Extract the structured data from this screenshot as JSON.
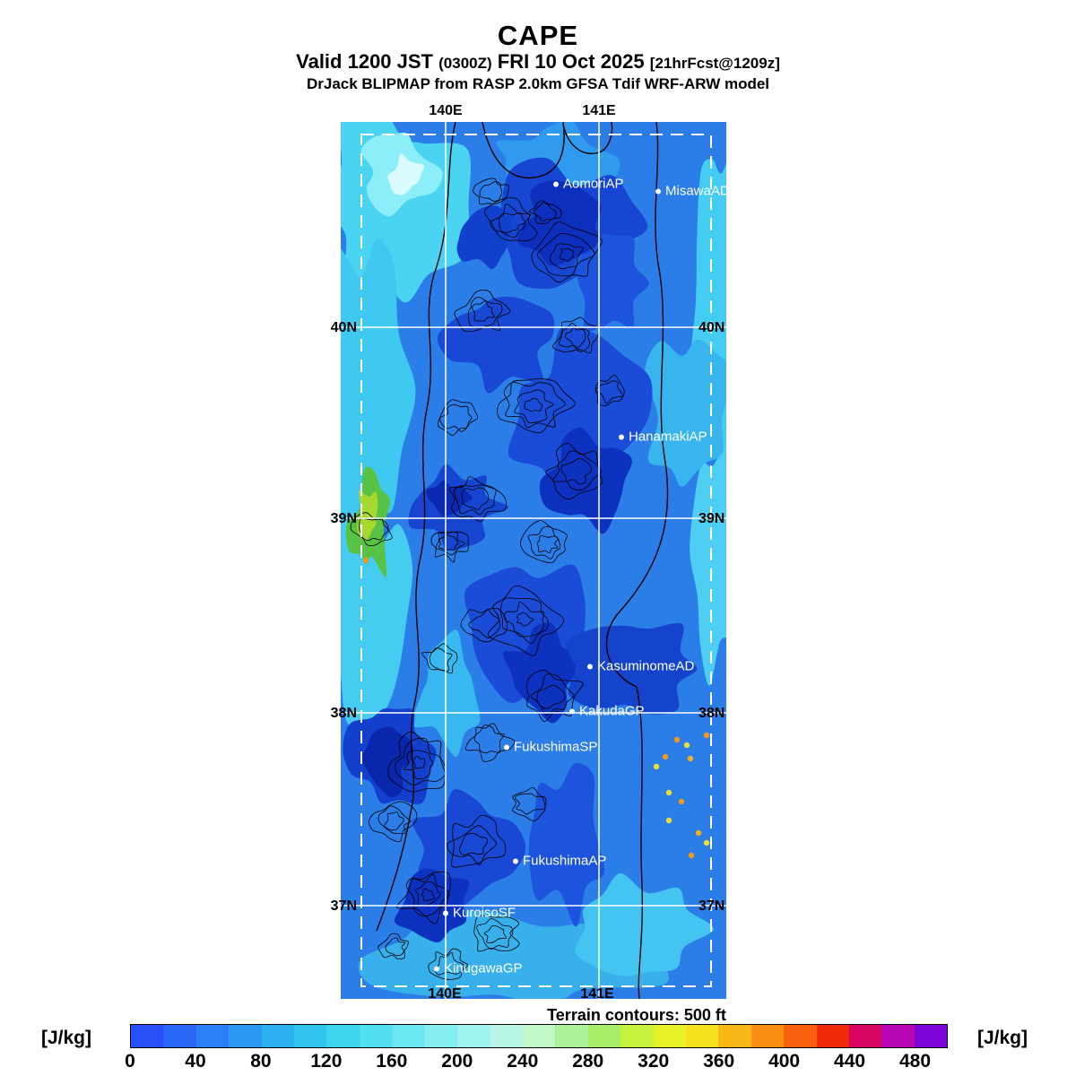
{
  "header": {
    "title": "CAPE",
    "valid_prefix": "Valid 1200 JST",
    "valid_time_z": "(0300Z)",
    "valid_date": "FRI 10 Oct 2025",
    "forecast_tag": "[21hrFcst@1209z]",
    "model_line": "DrJack BLIPMAP from RASP 2.0km GFSA Tdif WRF-ARW model"
  },
  "map": {
    "grid": {
      "lon_labels_top": [
        "140E",
        "141E"
      ],
      "lon_labels_bottom": [
        "140E",
        "141E"
      ],
      "lat_labels_left": [
        "40N",
        "39N",
        "38N",
        "37N"
      ],
      "lat_labels_right": [
        "40N",
        "39N",
        "38N",
        "37N"
      ]
    },
    "stations": [
      {
        "label": "AomoriAP"
      },
      {
        "label": "MisawaAD"
      },
      {
        "label": "HanamakiAP"
      },
      {
        "label": "KasuminomeAD"
      },
      {
        "label": "KakudaGP"
      },
      {
        "label": "FukushimaSP"
      },
      {
        "label": "FukushimaAP"
      },
      {
        "label": "KuroisoSF"
      },
      {
        "label": "KinugawaGP"
      }
    ]
  },
  "footer": {
    "terrain_note": "Terrain contours: 500 ft",
    "units_left": "[J/kg]",
    "units_right": "[J/kg]"
  },
  "colorbar": {
    "tick_labels": [
      "0",
      "40",
      "80",
      "120",
      "160",
      "200",
      "240",
      "280",
      "320",
      "360",
      "400",
      "440",
      "480"
    ],
    "cell_colors": [
      "#2850f8",
      "#2867f6",
      "#2a80f4",
      "#2c98f2",
      "#2eb0f0",
      "#30c4ee",
      "#3cd4ee",
      "#52dff0",
      "#6ae7f2",
      "#84edf2",
      "#9ef2f0",
      "#b6f5e6",
      "#c2f7c8",
      "#aaf29a",
      "#a8ee6a",
      "#c6f23c",
      "#e6f226",
      "#f6e01e",
      "#f8b818",
      "#f88e12",
      "#f8600e",
      "#f0280a",
      "#d80660",
      "#b606b6",
      "#7e06d8"
    ]
  }
}
